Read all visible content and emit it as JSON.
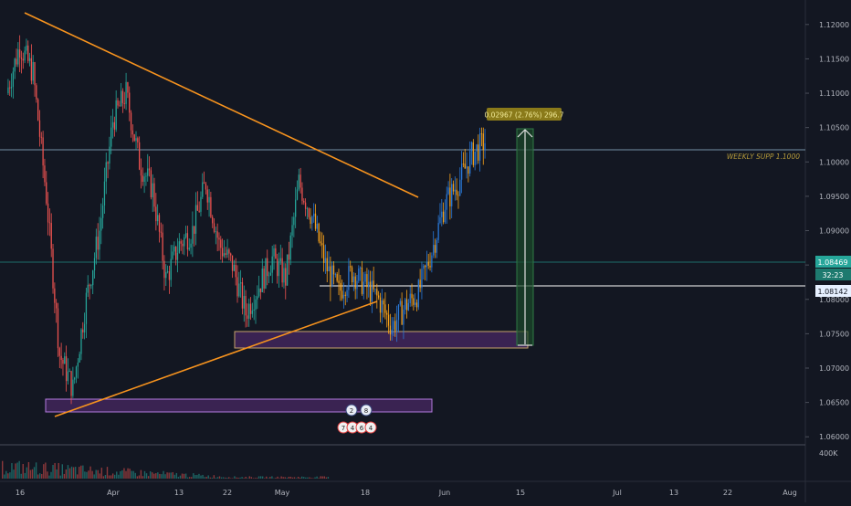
{
  "chart_data": {
    "type": "candlestick",
    "y_axis": {
      "ticks": [
        "1.12000",
        "1.11500",
        "1.11000",
        "1.10500",
        "1.10000",
        "1.09500",
        "1.09000",
        "1.08500",
        "1.08000",
        "1.07500",
        "1.07000",
        "1.06500",
        "1.06000"
      ],
      "range": [
        1.0595,
        1.1225
      ]
    },
    "x_axis": {
      "ticks": [
        "16",
        "Apr",
        "13",
        "22",
        "May",
        "18",
        "Jun",
        "15",
        "Jul",
        "13",
        "22",
        "Aug"
      ]
    },
    "volume_axis_label": "400K",
    "price_labels": {
      "current_price": "1.08469",
      "countdown": "32:23",
      "marked_level": "1.08142"
    },
    "annotations": {
      "measure_label": "0.02967 (2.76%) 296.7",
      "weekly_support_label": "WEEKLY SUPP 1.1000",
      "event_badges_top": [
        "2",
        "8"
      ],
      "event_badges_bottom": [
        "7",
        "4",
        "6",
        "4"
      ]
    },
    "colors": {
      "background": "#131722",
      "up_candle": "#26a69a",
      "down_candle": "#ef5350",
      "recent_up": "#2a78d6",
      "recent_down": "#f7a21b",
      "trendline": "#f7931e",
      "zone_fill": "#5b2d7a",
      "measure_box": "#1b3a2a",
      "current_price_bg": "#26a69a",
      "marked_level_bg": "#e6f0ff"
    },
    "series_shape": [
      [
        1.11,
        1.119,
        1.105,
        1.117
      ],
      [
        1.117,
        1.119,
        1.11,
        1.113
      ],
      [
        1.113,
        1.114,
        1.092,
        1.095
      ],
      [
        1.095,
        1.097,
        1.07,
        1.072
      ],
      [
        1.072,
        1.076,
        1.064,
        1.067
      ],
      [
        1.067,
        1.082,
        1.064,
        1.08
      ],
      [
        1.08,
        1.092,
        1.077,
        1.09
      ],
      [
        1.09,
        1.108,
        1.088,
        1.106
      ],
      [
        1.106,
        1.114,
        1.102,
        1.11
      ],
      [
        1.11,
        1.111,
        1.097,
        1.1
      ],
      [
        1.1,
        1.104,
        1.092,
        1.096
      ],
      [
        1.096,
        1.098,
        1.08,
        1.083
      ],
      [
        1.083,
        1.09,
        1.078,
        1.088
      ],
      [
        1.088,
        1.094,
        1.084,
        1.09
      ],
      [
        1.09,
        1.099,
        1.087,
        1.097
      ],
      [
        1.097,
        1.099,
        1.086,
        1.088
      ],
      [
        1.088,
        1.091,
        1.082,
        1.085
      ],
      [
        1.085,
        1.087,
        1.075,
        1.078
      ],
      [
        1.078,
        1.084,
        1.076,
        1.082
      ],
      [
        1.082,
        1.089,
        1.08,
        1.086
      ],
      [
        1.086,
        1.088,
        1.08,
        1.083
      ],
      [
        1.083,
        1.099,
        1.082,
        1.097
      ],
      [
        1.097,
        1.102,
        1.09,
        1.092
      ],
      [
        1.092,
        1.094,
        1.083,
        1.085
      ],
      [
        1.085,
        1.087,
        1.079,
        1.081
      ],
      [
        1.081,
        1.086,
        1.078,
        1.084
      ],
      [
        1.084,
        1.087,
        1.08,
        1.082
      ],
      [
        1.082,
        1.085,
        1.078,
        1.08
      ],
      [
        1.08,
        1.082,
        1.074,
        1.076
      ],
      [
        1.076,
        1.081,
        1.072,
        1.079
      ],
      [
        1.079,
        1.083,
        1.076,
        1.081
      ],
      [
        1.081,
        1.088,
        1.08,
        1.087
      ],
      [
        1.087,
        1.096,
        1.086,
        1.094
      ],
      [
        1.094,
        1.099,
        1.091,
        1.097
      ],
      [
        1.097,
        1.103,
        1.095,
        1.101
      ],
      [
        1.101,
        1.105,
        1.098,
        1.103
      ]
    ]
  }
}
